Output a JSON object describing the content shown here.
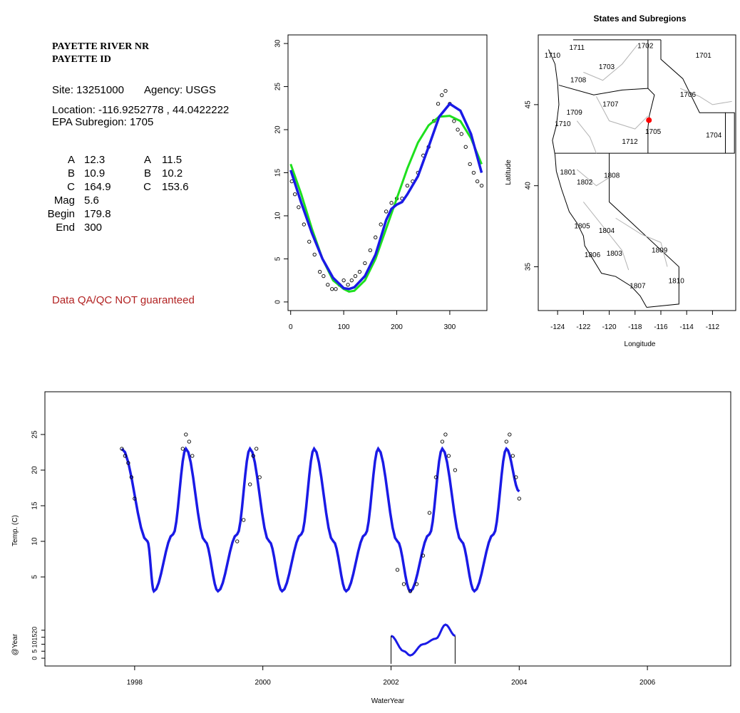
{
  "site": {
    "name_line1": "PAYETTE RIVER NR",
    "name_line2": "PAYETTE ID",
    "site_label": "Site: 13251000",
    "agency_label": "Agency: USGS",
    "location_label": "Location: -116.9252778 , 44.0422222",
    "epa_label": "EPA Subregion: 1705",
    "qa_note": "Data QA/QC NOT guaranteed"
  },
  "params": {
    "col1": [
      {
        "label": "A",
        "value": "12.3"
      },
      {
        "label": "B",
        "value": "10.9"
      },
      {
        "label": "C",
        "value": "164.9"
      },
      {
        "label": "Mag",
        "value": "5.6"
      },
      {
        "label": "Begin",
        "value": "179.8"
      },
      {
        "label": "End",
        "value": "300"
      }
    ],
    "col2": [
      {
        "label": "A",
        "value": "11.5"
      },
      {
        "label": "B",
        "value": "10.2"
      },
      {
        "label": "C",
        "value": "153.6"
      }
    ]
  },
  "colors": {
    "fit_blue": "#1a1ae6",
    "fit_green": "#1ee01e",
    "points": "#000000",
    "site_marker": "#ff0000",
    "qa_text": "#b22222",
    "subregion_lines": "#b4b4b4"
  },
  "chart_data": [
    {
      "type": "scatter",
      "title": "",
      "xlabel": "",
      "ylabel": "",
      "xlim": [
        -5,
        370
      ],
      "ylim": [
        -1,
        31
      ],
      "x_ticks": [
        "0",
        "100",
        "200",
        "300"
      ],
      "y_ticks": [
        "0",
        "5",
        "10",
        "15",
        "20",
        "25",
        "30"
      ],
      "series": [
        {
          "kind": "points",
          "x": [
            2,
            8,
            15,
            25,
            35,
            45,
            55,
            62,
            70,
            78,
            85,
            92,
            100,
            108,
            115,
            122,
            130,
            140,
            150,
            160,
            170,
            180,
            190,
            200,
            210,
            220,
            230,
            240,
            250,
            260,
            270,
            278,
            285,
            292,
            300,
            308,
            315,
            322,
            330,
            338,
            345,
            352,
            360
          ],
          "y": [
            14,
            12.5,
            11,
            9,
            7,
            5.5,
            3.5,
            3,
            2,
            1.5,
            1.5,
            2,
            2.5,
            2,
            2.5,
            3,
            3.5,
            4.5,
            6,
            7.5,
            9,
            10.5,
            11.5,
            12,
            12,
            13.5,
            14,
            15,
            17,
            18,
            21,
            23,
            24,
            24.5,
            23,
            21,
            20,
            19.5,
            18,
            16,
            15,
            14,
            13.5
          ]
        },
        {
          "kind": "line",
          "x": [
            0,
            20,
            40,
            60,
            80,
            100,
            110,
            120,
            140,
            160,
            180,
            200,
            220,
            240,
            260,
            280,
            300,
            320,
            340,
            360
          ],
          "y": [
            16,
            12.5,
            8.5,
            5,
            2.5,
            1.5,
            1.2,
            1.3,
            2.5,
            5,
            8.5,
            12,
            15.5,
            18.5,
            20.5,
            21.5,
            21.6,
            21,
            19,
            16
          ]
        },
        {
          "kind": "line",
          "x": [
            0,
            20,
            40,
            60,
            80,
            100,
            110,
            120,
            140,
            160,
            170,
            180,
            190,
            200,
            210,
            220,
            240,
            260,
            280,
            300,
            320,
            340,
            360
          ],
          "y": [
            15.3,
            11.5,
            8,
            5,
            2.8,
            1.6,
            1.5,
            1.7,
            3,
            5.5,
            7.5,
            9.5,
            10.8,
            11.3,
            11.6,
            12.5,
            14.6,
            18,
            21.5,
            23,
            22.2,
            19.5,
            15
          ]
        }
      ]
    },
    {
      "type": "map",
      "title": "States and Subregions",
      "xlabel": "Longitude",
      "ylabel": "Latitude",
      "xlim": [
        -125.5,
        -110.2
      ],
      "ylim": [
        32.3,
        49.3
      ],
      "x_ticks": [
        "-124",
        "-122",
        "-120",
        "-118",
        "-116",
        "-114",
        "-112"
      ],
      "y_ticks": [
        "35",
        "40",
        "45"
      ],
      "regions": [
        {
          "code": "1701",
          "lon": -112.7,
          "lat": 48.0
        },
        {
          "code": "1702",
          "lon": -117.2,
          "lat": 48.6
        },
        {
          "code": "1703",
          "lon": -120.2,
          "lat": 47.3
        },
        {
          "code": "1704",
          "lon": -111.9,
          "lat": 43.1
        },
        {
          "code": "1705",
          "lon": -116.6,
          "lat": 43.3
        },
        {
          "code": "1706",
          "lon": -113.9,
          "lat": 45.6
        },
        {
          "code": "1707",
          "lon": -119.9,
          "lat": 45.0
        },
        {
          "code": "1708",
          "lon": -122.4,
          "lat": 46.5
        },
        {
          "code": "1709",
          "lon": -122.7,
          "lat": 44.5
        },
        {
          "code": "1710",
          "lon": -123.6,
          "lat": 43.8
        },
        {
          "code": "1711",
          "lon": -122.5,
          "lat": 48.5
        },
        {
          "code": "1712",
          "lon": -118.4,
          "lat": 42.7
        },
        {
          "code": "1801",
          "lon": -123.2,
          "lat": 40.8
        },
        {
          "code": "1802",
          "lon": -121.9,
          "lat": 40.2
        },
        {
          "code": "1803",
          "lon": -119.6,
          "lat": 35.8
        },
        {
          "code": "1804",
          "lon": -120.2,
          "lat": 37.2
        },
        {
          "code": "1805",
          "lon": -122.1,
          "lat": 37.5
        },
        {
          "code": "1806",
          "lon": -121.3,
          "lat": 35.7
        },
        {
          "code": "1807",
          "lon": -117.8,
          "lat": 33.8
        },
        {
          "code": "1808",
          "lon": -119.8,
          "lat": 40.6
        },
        {
          "code": "1809",
          "lon": -116.1,
          "lat": 36.0
        },
        {
          "code": "1810",
          "lon": -114.8,
          "lat": 34.1
        },
        {
          "code": "1710",
          "lon": -124.4,
          "lat": 48.0
        }
      ],
      "site": {
        "lon": -116.9252778,
        "lat": 44.0422222
      }
    },
    {
      "type": "line",
      "title": "",
      "xlabel": "WaterYear",
      "ylabel": "Temp. (C)",
      "xlim": [
        1996.6,
        2007.3
      ],
      "ylim": [
        -1,
        31
      ],
      "x_ticks": [
        "1998",
        "2000",
        "2002",
        "2004",
        "2006"
      ],
      "y_ticks": [
        "5",
        "10",
        "15",
        "20",
        "25"
      ],
      "inset_ylabel": "@Year",
      "inset_ticks": [
        "0",
        "5",
        "10",
        "15",
        "20"
      ],
      "series": [
        {
          "kind": "line",
          "x": [
            1997.8,
            1998.2,
            1998.3,
            1998.6,
            1998.8,
            1999.1,
            1999.3,
            1999.6,
            1999.8,
            2000.1,
            2000.3,
            2000.6,
            2000.8,
            2001.1,
            2001.3,
            2001.6,
            2001.8,
            2002.1,
            2002.3,
            2002.6,
            2002.8,
            2003.1,
            2003.3,
            2003.6,
            2003.8,
            2004.0
          ],
          "y": [
            23,
            10,
            3,
            11,
            23,
            10,
            3,
            11,
            23,
            10,
            3,
            11,
            23,
            10,
            3,
            11,
            23,
            10,
            3,
            11,
            23,
            10,
            3,
            11,
            23,
            17
          ]
        },
        {
          "kind": "points",
          "x": [
            1997.8,
            1997.85,
            1997.9,
            1997.95,
            1998.0,
            1998.75,
            1998.8,
            1998.85,
            1998.9,
            1999.6,
            1999.7,
            1999.8,
            1999.85,
            1999.9,
            1999.95,
            2002.1,
            2002.2,
            2002.3,
            2002.4,
            2002.5,
            2002.6,
            2002.7,
            2002.8,
            2002.85,
            2002.9,
            2003.0,
            2003.8,
            2003.85,
            2003.9,
            2003.95,
            2004.0
          ],
          "y": [
            23,
            22,
            21,
            19,
            16,
            23,
            25,
            24,
            22,
            10,
            13,
            18,
            22,
            23,
            19,
            6,
            4,
            3,
            4,
            8,
            14,
            19,
            24,
            25,
            22,
            20,
            24,
            25,
            22,
            19,
            16
          ]
        },
        {
          "kind": "inset",
          "x": [
            2002.0,
            2002.2,
            2002.3,
            2002.5,
            2002.7,
            2002.85,
            2003.0
          ],
          "y": [
            16,
            5,
            2,
            10,
            14,
            24,
            16
          ]
        }
      ]
    }
  ]
}
